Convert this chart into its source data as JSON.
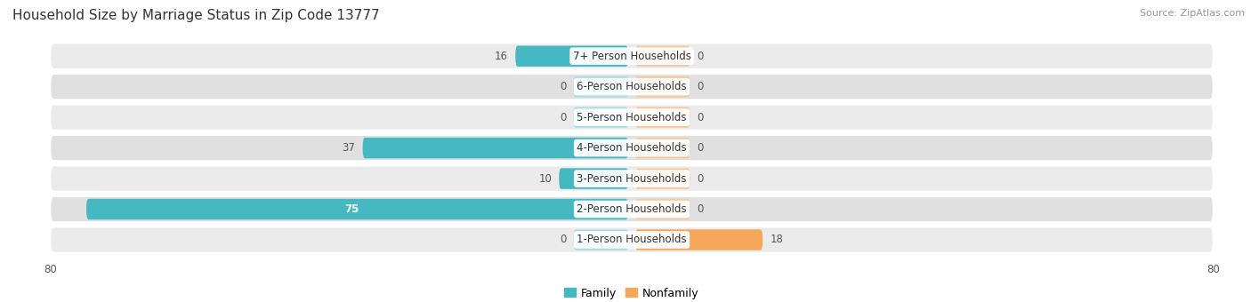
{
  "title": "Household Size by Marriage Status in Zip Code 13777",
  "source": "Source: ZipAtlas.com",
  "categories": [
    "7+ Person Households",
    "6-Person Households",
    "5-Person Households",
    "4-Person Households",
    "3-Person Households",
    "2-Person Households",
    "1-Person Households"
  ],
  "family_values": [
    16,
    0,
    0,
    37,
    10,
    75,
    0
  ],
  "nonfamily_values": [
    0,
    0,
    0,
    0,
    0,
    0,
    18
  ],
  "family_color": "#45b8c2",
  "nonfamily_color": "#f5a85a",
  "nonfamily_zero_color": "#f5c99a",
  "family_zero_color": "#a8dde0",
  "row_bg_color_odd": "#ebebeb",
  "row_bg_color_even": "#e0e0e0",
  "xlim": 80,
  "min_bar_val": 8,
  "title_fontsize": 11,
  "source_fontsize": 8,
  "cat_label_fontsize": 8.5,
  "val_label_fontsize": 8.5,
  "tick_fontsize": 8.5,
  "legend_fontsize": 9,
  "legend_family": "Family",
  "legend_nonfamily": "Nonfamily",
  "bar_height": 0.68,
  "background_color": "#ffffff"
}
